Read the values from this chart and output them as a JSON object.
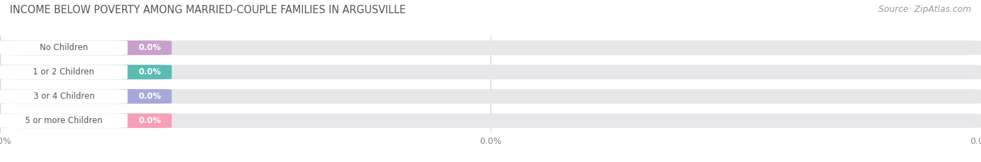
{
  "title": "INCOME BELOW POVERTY AMONG MARRIED-COUPLE FAMILIES IN ARGUSVILLE",
  "source": "Source: ZipAtlas.com",
  "categories": [
    "No Children",
    "1 or 2 Children",
    "3 or 4 Children",
    "5 or more Children"
  ],
  "values": [
    0.0,
    0.0,
    0.0,
    0.0
  ],
  "bar_colors": [
    "#c9a0cc",
    "#5bbcb4",
    "#a8a8d8",
    "#f4a0b8"
  ],
  "bar_bg_color": "#e8e8ea",
  "white_pill_color": "#ffffff",
  "background_color": "#ffffff",
  "label_color_dark": "#555555",
  "label_color_axis": "#888888",
  "value_color": "#ffffff",
  "title_color": "#555555",
  "source_color": "#999999",
  "grid_color": "#cccccc",
  "figsize": [
    14.06,
    2.33
  ],
  "dpi": 100
}
